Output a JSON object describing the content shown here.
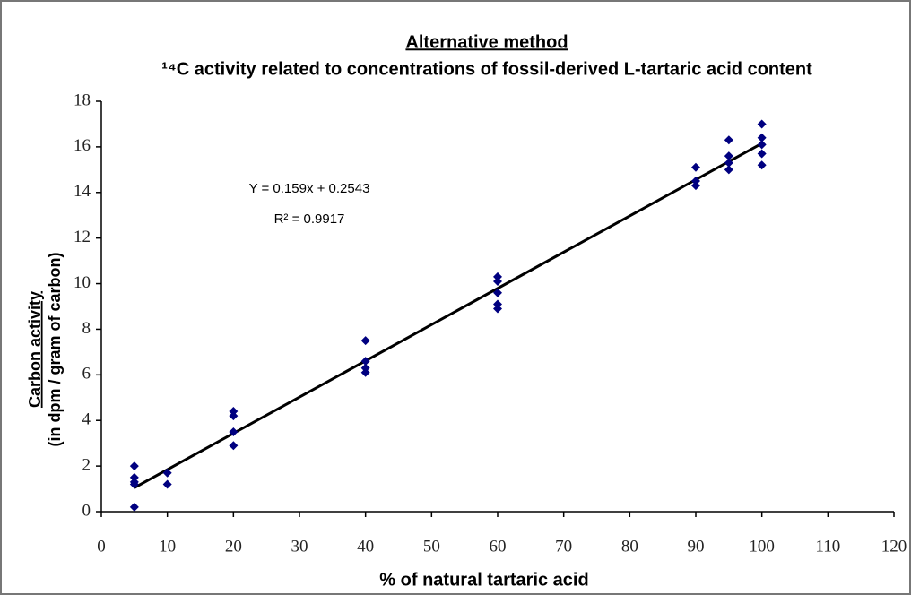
{
  "chart_data": {
    "type": "scatter",
    "title": "Alternative method",
    "subtitle": "¹⁴C activity related to concentrations of fossil-derived L-tartaric acid content",
    "ylabel": [
      "Carbon activity",
      "(in dpm / gram of carbon)"
    ],
    "xlabel": "% of natural tartaric acid",
    "annotations": [
      "Y = 0.159x + 0.2543",
      "R² = 0.9917"
    ],
    "x": [
      5,
      5,
      5,
      5,
      5,
      10,
      10,
      20,
      20,
      20,
      20,
      40,
      40,
      40,
      40,
      60,
      60,
      60,
      60,
      60,
      90,
      90,
      90,
      95,
      95,
      95,
      95,
      100,
      100,
      100,
      100,
      100
    ],
    "values": [
      2.0,
      1.5,
      1.3,
      1.2,
      0.2,
      1.7,
      1.2,
      4.4,
      4.2,
      3.5,
      2.9,
      7.5,
      6.6,
      6.3,
      6.1,
      10.3,
      10.1,
      9.6,
      9.1,
      8.9,
      15.1,
      14.5,
      14.3,
      16.3,
      15.6,
      15.3,
      15.0,
      17.0,
      16.4,
      16.1,
      15.7,
      15.2
    ],
    "color": "#000080",
    "trendline": {
      "x": [
        5,
        100
      ],
      "values": [
        1.05,
        16.15
      ],
      "color": "#000000"
    },
    "xlim": [
      0,
      120
    ],
    "xticks": [
      0,
      10,
      20,
      30,
      40,
      50,
      60,
      70,
      80,
      90,
      100,
      110,
      120
    ],
    "ylim": [
      0,
      18
    ],
    "yticks": [
      0,
      2,
      4,
      6,
      8,
      10,
      12,
      14,
      16,
      18
    ],
    "grid": false
  }
}
